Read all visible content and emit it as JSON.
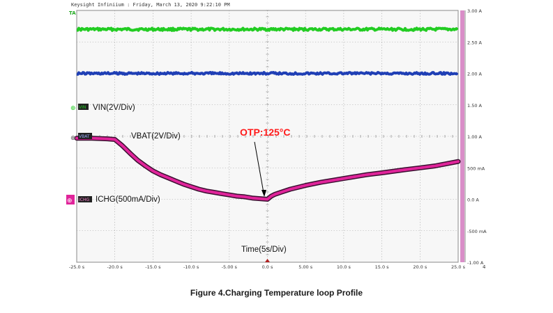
{
  "header": "Keysight Infiniium : Friday, March 13, 2020 9:22:10 PM",
  "caption": "Figure 4.Charging Temperature loop Profile",
  "annotation": "OTP:125°C",
  "trigger_marker": "TA",
  "right_edge_label": "4",
  "colors": {
    "background": "#f7f7f7",
    "grid": "#9a9a9a",
    "vin": "#22cc22",
    "blue_trace": "#1f3fb5",
    "ichg": "#e0249a",
    "annotation": "#ff1a1a",
    "right_scale": "#d98ec8"
  },
  "chart_data": {
    "type": "line",
    "title": "",
    "xlabel": "Time(5s/Div)",
    "ylabel": "",
    "xlim": [
      -25,
      25
    ],
    "ylim": [
      -1.0,
      3.0
    ],
    "grid": true,
    "x_ticks": [
      "-25.0 s",
      "-20.0 s",
      "-15.0 s",
      "-10.0 s",
      "-5.00 s",
      "0.0 s",
      "5.00 s",
      "10.0 s",
      "15.0 s",
      "20.0 s",
      "25.0 s"
    ],
    "y_ticks": [
      "3.00 A",
      "2.50 A",
      "2.00 A",
      "1.50 A",
      "1.00 A",
      "500 mA",
      "0.0 A",
      "-500 mA",
      "-1.00 A"
    ],
    "series": [
      {
        "name": "VIN(2V/Div)",
        "channel": "VIN",
        "x": [
          -25,
          25
        ],
        "y": [
          2.7,
          2.7
        ]
      },
      {
        "name": "VBAT(2V/Div)",
        "channel": "VBAT",
        "x": [
          -25,
          25
        ],
        "y": [
          2.0,
          2.0
        ]
      },
      {
        "name": "ICHG(500mA/Div)",
        "channel": "ICHG",
        "x": [
          -25,
          -23,
          -21,
          -20,
          -19,
          -18,
          -17,
          -16,
          -15,
          -14,
          -13,
          -12,
          -11,
          -10,
          -9,
          -8,
          -7,
          -6,
          -5,
          -4,
          -3,
          -2,
          -1,
          0,
          0.5,
          1,
          2,
          3,
          5,
          7,
          10,
          13,
          15,
          18,
          20,
          22,
          25
        ],
        "y": [
          0.97,
          0.97,
          0.96,
          0.95,
          0.85,
          0.73,
          0.62,
          0.53,
          0.45,
          0.39,
          0.34,
          0.29,
          0.24,
          0.2,
          0.16,
          0.13,
          0.11,
          0.09,
          0.07,
          0.05,
          0.04,
          0.02,
          0.01,
          0.0,
          0.05,
          0.08,
          0.12,
          0.16,
          0.22,
          0.27,
          0.33,
          0.39,
          0.42,
          0.47,
          0.5,
          0.53,
          0.6
        ]
      }
    ],
    "channel_labels": [
      "VIN",
      "VBAT",
      "ICHG"
    ]
  }
}
